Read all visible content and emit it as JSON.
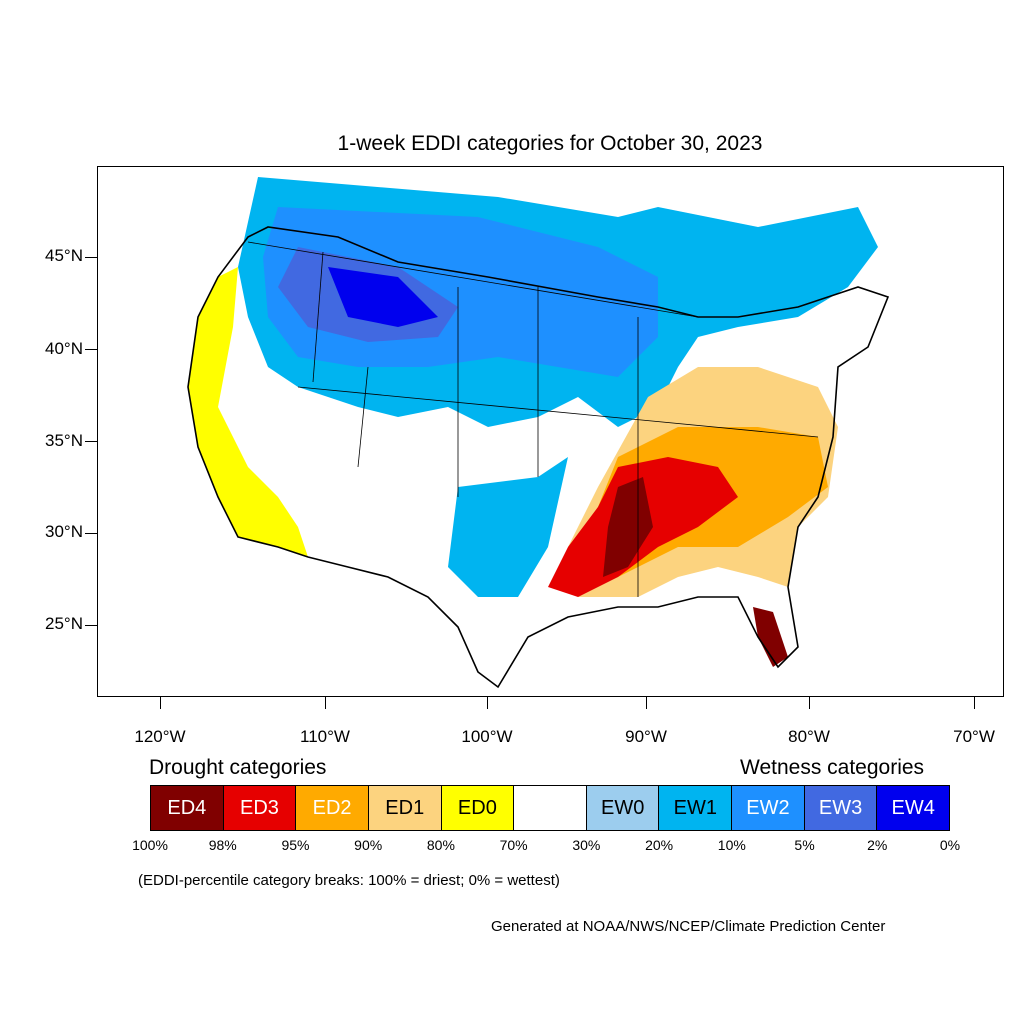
{
  "title": "1-week EDDI categories for October 30, 2023",
  "map": {
    "lat_labels": [
      "45°N",
      "40°N",
      "35°N",
      "30°N",
      "25°N"
    ],
    "lon_labels": [
      "120°W",
      "110°W",
      "100°W",
      "90°W",
      "80°W",
      "70°W"
    ]
  },
  "legend": {
    "drought_heading": "Drought categories",
    "wetness_heading": "Wetness categories",
    "categories": [
      {
        "label": "ED4",
        "color": "#800000",
        "text_color": "#ffffff"
      },
      {
        "label": "ED3",
        "color": "#e60000",
        "text_color": "#ffffff"
      },
      {
        "label": "ED2",
        "color": "#ffaa00",
        "text_color": "#ffffff"
      },
      {
        "label": "ED1",
        "color": "#fcd37f",
        "text_color": "#000000"
      },
      {
        "label": "ED0",
        "color": "#ffff00",
        "text_color": "#000000"
      },
      {
        "label": "",
        "color": "#ffffff",
        "text_color": "#000000"
      },
      {
        "label": "EW0",
        "color": "#9ccdee",
        "text_color": "#000000"
      },
      {
        "label": "EW1",
        "color": "#00b4f0",
        "text_color": "#000000"
      },
      {
        "label": "EW2",
        "color": "#1e90ff",
        "text_color": "#ffffff"
      },
      {
        "label": "EW3",
        "color": "#4169e1",
        "text_color": "#ffffff"
      },
      {
        "label": "EW4",
        "color": "#0000ee",
        "text_color": "#ffffff"
      }
    ],
    "percentiles": [
      "100%",
      "98%",
      "95%",
      "90%",
      "80%",
      "70%",
      "30%",
      "20%",
      "10%",
      "5%",
      "2%",
      "0%"
    ]
  },
  "note": "(EDDI-percentile category breaks: 100% = driest; 0% = wettest)",
  "credit": "Generated at NOAA/NWS/NCEP/Climate Prediction Center"
}
